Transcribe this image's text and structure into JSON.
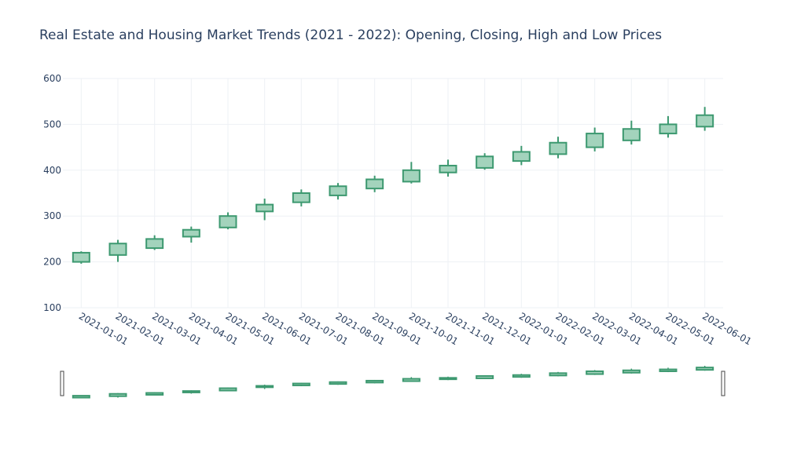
{
  "chart_data": {
    "type": "candlestick",
    "title": "Real Estate and Housing Market Trends (2021 - 2022): Opening, Closing, High and Low Prices",
    "xlabel": "",
    "ylabel": "",
    "ylim": [
      100,
      600
    ],
    "yticks": [
      100,
      200,
      300,
      400,
      500,
      600
    ],
    "grid": true,
    "legend": "none",
    "colors": {
      "increasing_line": "#3d9970",
      "increasing_fill": "#a3d3bc",
      "text": "#2a3f5f",
      "grid": "#eef1f5"
    },
    "categories": [
      "2021-01-01",
      "2021-02-01",
      "2021-03-01",
      "2021-04-01",
      "2021-05-01",
      "2021-06-01",
      "2021-07-01",
      "2021-08-01",
      "2021-09-01",
      "2021-10-01",
      "2021-11-01",
      "2021-12-01",
      "2022-01-01",
      "2022-02-01",
      "2022-03-01",
      "2022-04-01",
      "2022-05-01",
      "2022-06-01"
    ],
    "open": [
      200,
      215,
      230,
      255,
      275,
      310,
      330,
      345,
      360,
      375,
      395,
      405,
      420,
      435,
      450,
      465,
      480,
      495
    ],
    "high": [
      223,
      248,
      258,
      277,
      308,
      338,
      358,
      372,
      388,
      418,
      423,
      437,
      453,
      473,
      493,
      508,
      518,
      538
    ],
    "low": [
      196,
      200,
      226,
      242,
      271,
      291,
      321,
      336,
      352,
      371,
      386,
      401,
      411,
      426,
      441,
      456,
      471,
      486
    ],
    "close": [
      220,
      240,
      250,
      270,
      300,
      325,
      350,
      365,
      380,
      400,
      410,
      430,
      440,
      460,
      480,
      490,
      500,
      520
    ],
    "rangeslider": true
  }
}
